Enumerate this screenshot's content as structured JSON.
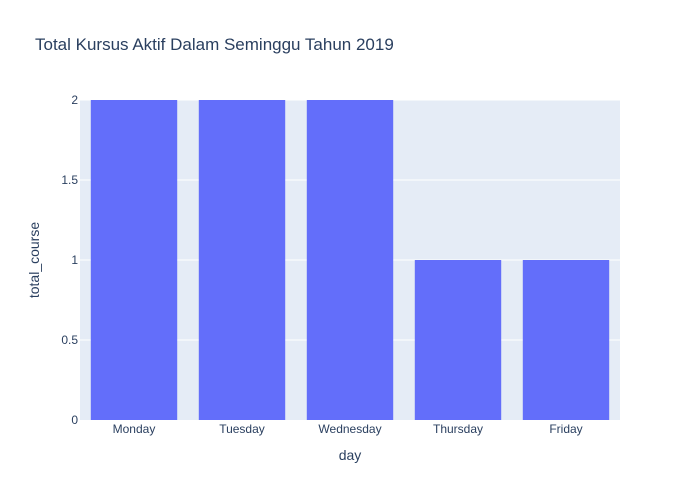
{
  "chart_data": {
    "type": "bar",
    "title": "Total Kursus Aktif Dalam Seminggu Tahun 2019",
    "xlabel": "day",
    "ylabel": "total_course",
    "categories": [
      "Monday",
      "Tuesday",
      "Wednesday",
      "Thursday",
      "Friday"
    ],
    "values": [
      2,
      2,
      2,
      1,
      1
    ],
    "ylim": [
      0,
      2
    ],
    "yticks": [
      0,
      0.5,
      1,
      1.5,
      2
    ],
    "ytick_labels": [
      "0",
      "0.5",
      "1",
      "1.5",
      "2"
    ],
    "grid": true,
    "legend": "none"
  },
  "colors": {
    "bar": "#636efa",
    "plot_bg": "#e5ecf6",
    "grid": "#ffffff",
    "text": "#2a3f5f"
  }
}
